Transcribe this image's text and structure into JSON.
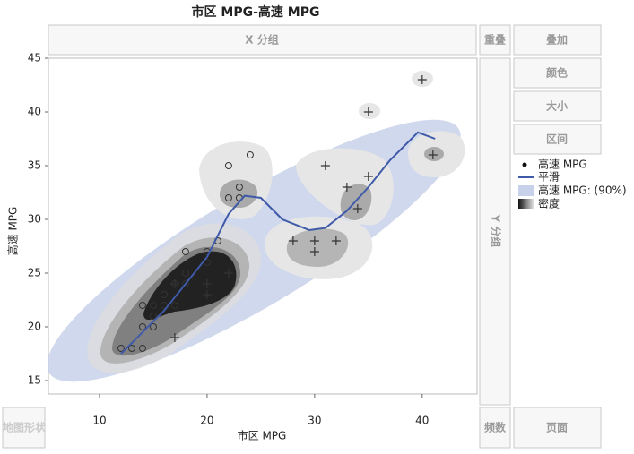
{
  "chart_data": {
    "type": "scatter",
    "title": "市区 MPG-高速 MPG",
    "x_label": "市区 MPG",
    "y_label": "高速 MPG",
    "xlim": [
      5.25,
      45.1
    ],
    "ylim": [
      13.75,
      45
    ],
    "xticks": [
      10,
      20,
      30,
      40
    ],
    "yticks": [
      15,
      20,
      25,
      30,
      35,
      40,
      45
    ],
    "grid": false,
    "series": [
      {
        "name": "高速 MPG",
        "color": "#333333",
        "x": [
          12,
          13,
          14,
          14,
          14,
          15,
          15,
          15,
          16,
          16,
          17,
          17,
          18,
          18,
          18,
          20,
          20,
          21,
          22,
          22,
          23,
          23,
          24,
          17,
          20,
          20,
          22,
          17,
          28,
          30,
          30,
          32,
          31,
          33,
          35,
          34,
          35,
          40,
          41
        ],
        "values": [
          18,
          18,
          18,
          20,
          22,
          20,
          21,
          22,
          22,
          23,
          22,
          24,
          24,
          25,
          27,
          27,
          26,
          28,
          32,
          35,
          32,
          33,
          36,
          19,
          24,
          23,
          25,
          24,
          28,
          28,
          27,
          28,
          35,
          33,
          34,
          31,
          40,
          43,
          36
        ],
        "markers": [
          "circle",
          "circle",
          "circle",
          "circle",
          "circle",
          "circle",
          "circle",
          "circle",
          "circle",
          "circle",
          "circle",
          "circle",
          "circle",
          "circle",
          "circle",
          "circle",
          "circle",
          "circle",
          "circle",
          "circle",
          "circle",
          "circle",
          "circle",
          "plus",
          "plus",
          "plus",
          "plus",
          "plus",
          "plus",
          "plus",
          "plus",
          "plus",
          "plus",
          "plus",
          "plus",
          "plus",
          "plus",
          "plus",
          "plus"
        ]
      },
      {
        "name": "平滑",
        "type": "line",
        "color": "#3f5aa8",
        "x": [
          12,
          14,
          16,
          18,
          20,
          22,
          23.5,
          25,
          27,
          29.5,
          31,
          33,
          35,
          37,
          39.6,
          41.2
        ],
        "values": [
          17.5,
          19.5,
          21.5,
          24,
          26.5,
          30.5,
          32.2,
          32,
          30,
          29,
          29.2,
          30.8,
          33,
          35.5,
          38.1,
          37.5
        ]
      }
    ],
    "ellipse": {
      "name": "高速 MPG: (90%)",
      "color": "#c8d1ea"
    },
    "density": {
      "name": "密度"
    }
  },
  "ui": {
    "x_group": "X 分组",
    "overlap": "重叠",
    "buttons": [
      "叠加",
      "颜色",
      "大小",
      "区间"
    ],
    "y_group": "Y 分组",
    "freq": "频数",
    "page": "页面",
    "map_shape": "地图形状"
  }
}
